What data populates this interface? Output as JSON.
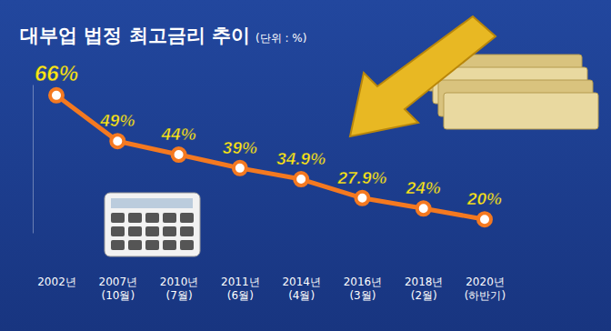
{
  "chart_data": {
    "type": "line",
    "title": "대부업 법정 최고금리 추이",
    "subtitle": "(단위 : %)",
    "categories": [
      "2002년",
      "2007년\n(10월)",
      "2010년\n(7월)",
      "2011년\n(6월)",
      "2014년\n(4월)",
      "2016년\n(3월)",
      "2018년\n(2월)",
      "2020년\n(하반기)"
    ],
    "values": [
      66,
      49,
      44,
      39,
      34.9,
      27.9,
      24,
      20
    ],
    "value_labels": [
      "66%",
      "49%",
      "44%",
      "39%",
      "34.9%",
      "27.9%",
      "24%",
      "20%"
    ],
    "color": "#f47920",
    "marker": "circle",
    "data_labels": true,
    "tick_labels": "x",
    "ylim": [
      15,
      70
    ],
    "grid": false
  }
}
